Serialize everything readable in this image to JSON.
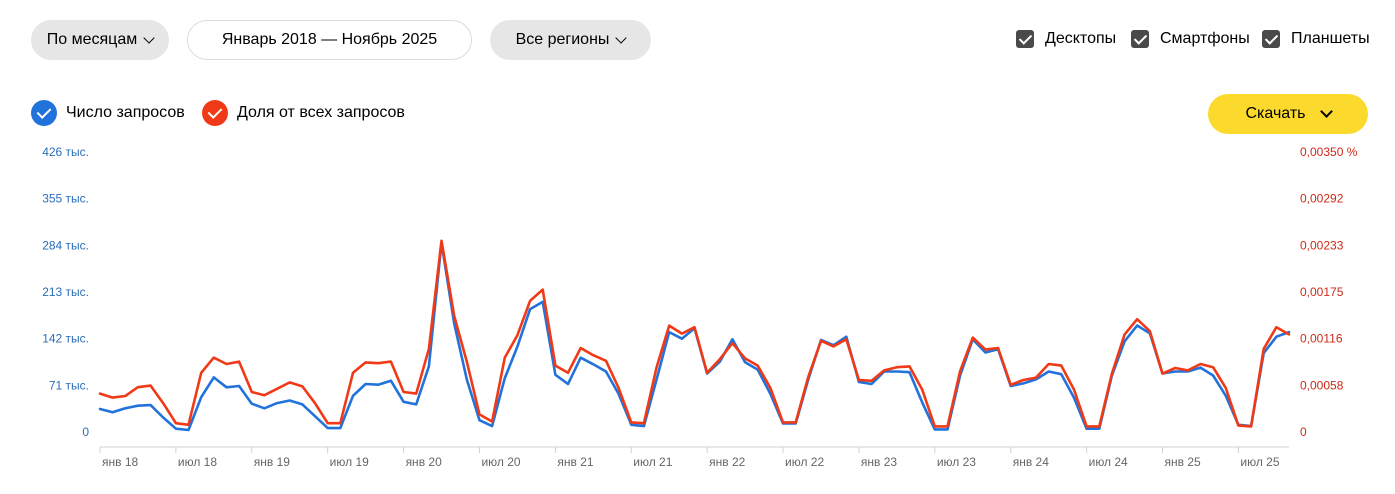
{
  "controls": {
    "period_label": "По месяцам",
    "range_label": "Январь 2018 — Ноябрь 2025",
    "region_label": "Все регионы",
    "devices": [
      {
        "label": "Десктопы",
        "checked": true
      },
      {
        "label": "Смартфоны",
        "checked": true
      },
      {
        "label": "Планшеты",
        "checked": true
      }
    ],
    "download_label": "Скачать"
  },
  "legend": {
    "count_label": "Число запросов",
    "share_label": "Доля от всех запросов",
    "count_color": "#2173db",
    "share_color": "#f03a17"
  },
  "chart_data": {
    "type": "line",
    "y_left": {
      "ticks": [
        "426 тыс.",
        "355 тыс.",
        "284 тыс.",
        "213 тыс.",
        "142 тыс.",
        "71 тыс.",
        "0"
      ],
      "max": 426
    },
    "y_right": {
      "ticks": [
        "0,00350 %",
        "0,00292",
        "0,00233",
        "0,00175",
        "0,00116",
        "0,00058",
        "0"
      ],
      "max": 0.0035
    },
    "x_ticks": [
      {
        "label": "янв 18",
        "index": 0
      },
      {
        "label": "июл 18",
        "index": 6
      },
      {
        "label": "янв 19",
        "index": 12
      },
      {
        "label": "июл 19",
        "index": 18
      },
      {
        "label": "янв 20",
        "index": 24
      },
      {
        "label": "июл 20",
        "index": 30
      },
      {
        "label": "янв 21",
        "index": 36
      },
      {
        "label": "июл 21",
        "index": 42
      },
      {
        "label": "янв 22",
        "index": 48
      },
      {
        "label": "июл 22",
        "index": 54
      },
      {
        "label": "янв 23",
        "index": 60
      },
      {
        "label": "июл 23",
        "index": 66
      },
      {
        "label": "янв 24",
        "index": 72
      },
      {
        "label": "июл 24",
        "index": 78
      },
      {
        "label": "янв 25",
        "index": 84
      },
      {
        "label": "июл 25",
        "index": 90
      }
    ],
    "grid": false,
    "series": [
      {
        "name": "Число запросов",
        "axis": "left",
        "color": "#2173db",
        "values": [
          35,
          30,
          36,
          40,
          41,
          22,
          5,
          3,
          53,
          83,
          68,
          70,
          43,
          36,
          44,
          48,
          42,
          24,
          6,
          6,
          55,
          73,
          72,
          78,
          46,
          42,
          100,
          288,
          165,
          80,
          18,
          9,
          82,
          130,
          187,
          198,
          87,
          73,
          113,
          103,
          92,
          58,
          11,
          9,
          80,
          152,
          142,
          158,
          89,
          107,
          141,
          106,
          95,
          58,
          13,
          13,
          80,
          140,
          132,
          145,
          76,
          73,
          92,
          92,
          91,
          45,
          4,
          4,
          86,
          141,
          121,
          126,
          70,
          74,
          80,
          92,
          88,
          52,
          5,
          5,
          86,
          138,
          162,
          150,
          89,
          92,
          92,
          98,
          86,
          55,
          11,
          9,
          120,
          145,
          152
        ]
      },
      {
        "name": "Доля от всех запросов",
        "axis": "right",
        "color": "#f03a17",
        "values": [
          0.00048,
          0.00043,
          0.00045,
          0.00056,
          0.00058,
          0.00036,
          0.00011,
          9e-05,
          0.00074,
          0.00093,
          0.00085,
          0.00088,
          0.0005,
          0.00046,
          0.00054,
          0.00062,
          0.00057,
          0.00036,
          0.00011,
          0.00011,
          0.00074,
          0.00087,
          0.00086,
          0.00088,
          0.0005,
          0.00048,
          0.00104,
          0.00239,
          0.00145,
          0.00088,
          0.00022,
          0.00013,
          0.00093,
          0.00121,
          0.00164,
          0.00178,
          0.00083,
          0.00074,
          0.00105,
          0.00096,
          0.00089,
          0.00055,
          0.00012,
          0.00011,
          0.00081,
          0.00133,
          0.00123,
          0.00131,
          0.00074,
          0.00091,
          0.00111,
          0.00092,
          0.00083,
          0.00055,
          0.00012,
          0.00012,
          0.00069,
          0.00114,
          0.00107,
          0.00116,
          0.00065,
          0.00064,
          0.00077,
          0.00081,
          0.00082,
          0.00053,
          7e-05,
          7e-05,
          0.00076,
          0.00118,
          0.00103,
          0.00105,
          0.00059,
          0.00065,
          0.00068,
          0.00085,
          0.00083,
          0.00053,
          7e-05,
          7e-05,
          0.00073,
          0.00122,
          0.00141,
          0.00126,
          0.00073,
          0.0008,
          0.00077,
          0.00085,
          0.00081,
          0.00055,
          8e-05,
          7e-05,
          0.00104,
          0.00131,
          0.00122
        ]
      }
    ]
  }
}
